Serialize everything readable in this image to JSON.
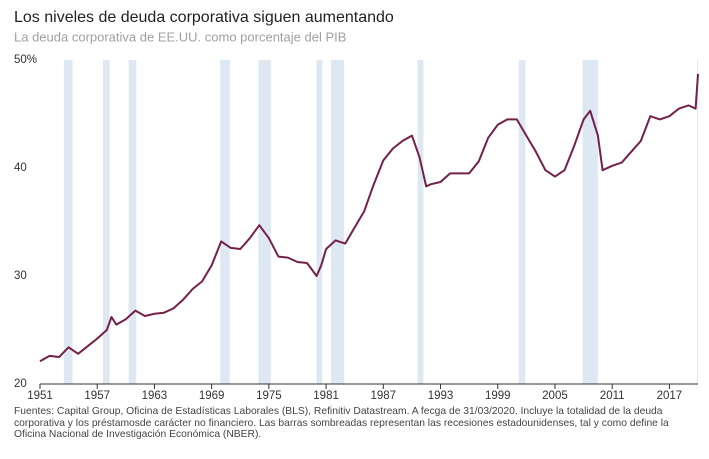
{
  "chart_data": {
    "type": "line",
    "title": "Los niveles de deuda corporativa siguen aumentando",
    "subtitle": "La deuda corporativa de EE.UU. como porcentaje del PIB",
    "source": "Fuentes: Capital Group, Oficina de Estadísticas Laborales (BLS), Refinitiv Datastream. A fecga de 31/03/2020. Incluye la totalidad de la deuda corporativa y los préstamosde carácter no financiero. Las barras sombreadas representan las recesiones estadounidenses, tal y como define la Oficina Nacional de Investigación Económica (NBER).",
    "xlim": [
      1951,
      2020
    ],
    "ylim": [
      20,
      50
    ],
    "xticks": [
      1951,
      1957,
      1963,
      1969,
      1975,
      1981,
      1987,
      1993,
      1999,
      2005,
      2011,
      2017
    ],
    "yticks": [
      20,
      30,
      40,
      {
        "value": 50,
        "label": "50%"
      }
    ],
    "recessions": [
      [
        1953.5,
        1954.4
      ],
      [
        1957.6,
        1958.3
      ],
      [
        1960.3,
        1961.1
      ],
      [
        1969.9,
        1970.9
      ],
      [
        1973.9,
        1975.2
      ],
      [
        1980.0,
        1980.6
      ],
      [
        1981.5,
        1982.9
      ],
      [
        1990.6,
        1991.2
      ],
      [
        2001.2,
        2001.9
      ],
      [
        2007.9,
        2009.5
      ],
      [
        2019.9,
        2020
      ]
    ],
    "recession_color": "#dde8f2",
    "x": [
      1951,
      1952,
      1953,
      1954,
      1955,
      1956,
      1957,
      1958,
      1958.5,
      1959,
      1960,
      1961,
      1962,
      1963,
      1964,
      1965,
      1966,
      1967,
      1968,
      1969,
      1970,
      1971,
      1972,
      1973,
      1974,
      1975,
      1976,
      1977,
      1978,
      1979,
      1980,
      1980.5,
      1981,
      1982,
      1983,
      1984,
      1985,
      1986,
      1987,
      1988,
      1989,
      1990,
      1990.8,
      1991.5,
      1992,
      1993,
      1994,
      1995,
      1996,
      1997,
      1998,
      1999,
      2000,
      2001,
      2002,
      2003,
      2004,
      2005,
      2006,
      2007,
      2008,
      2008.7,
      2009.5,
      2010,
      2011,
      2012,
      2013,
      2014,
      2015,
      2016,
      2017,
      2018,
      2019,
      2019.75,
      2020
    ],
    "series": [
      {
        "name": "Deuda corporativa / PIB",
        "color": "#74204a",
        "values": [
          22.1,
          22.6,
          22.5,
          23.4,
          22.8,
          23.5,
          24.2,
          25.0,
          26.2,
          25.5,
          26.0,
          26.8,
          26.3,
          26.5,
          26.6,
          27.0,
          27.8,
          28.8,
          29.5,
          31.0,
          33.2,
          32.6,
          32.5,
          33.5,
          34.7,
          33.5,
          31.8,
          31.7,
          31.3,
          31.2,
          30.0,
          31.0,
          32.5,
          33.3,
          33.0,
          34.5,
          36.0,
          38.5,
          40.7,
          41.8,
          42.5,
          43.0,
          41.0,
          38.3,
          38.5,
          38.7,
          39.5,
          39.5,
          39.5,
          40.6,
          42.8,
          44.0,
          44.5,
          44.5,
          43.0,
          41.5,
          39.8,
          39.2,
          39.8,
          42.0,
          44.5,
          45.3,
          43.0,
          39.8,
          40.2,
          40.5,
          41.5,
          42.5,
          44.8,
          44.5,
          44.8,
          45.5,
          45.8,
          45.5,
          48.7
        ]
      }
    ]
  }
}
